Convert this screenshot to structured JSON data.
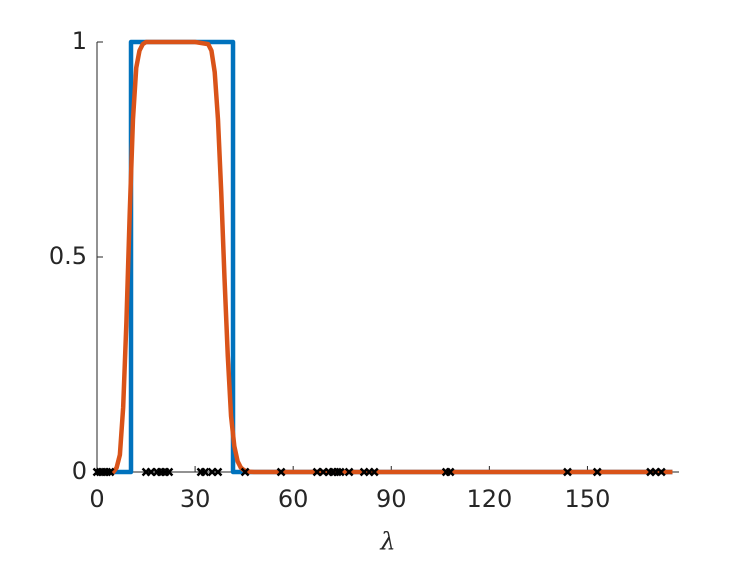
{
  "chart_data": {
    "type": "line",
    "x_label": "λ",
    "xlim": [
      0,
      178
    ],
    "ylim": [
      0,
      1
    ],
    "xticks": [
      0,
      30,
      60,
      90,
      120,
      150
    ],
    "yticks": [
      0,
      0.5,
      1
    ],
    "series": [
      {
        "color": "#0072bd",
        "style": "line",
        "x": [
          0,
          10.4,
          10.4,
          41.6,
          41.6,
          176
        ],
        "values": [
          0,
          0,
          1,
          1,
          0,
          0
        ]
      },
      {
        "color": "#d95319",
        "style": "line",
        "x": [
          0,
          5,
          6,
          7,
          8,
          9,
          10,
          11,
          12,
          13,
          14,
          15,
          20,
          25,
          30,
          34,
          35,
          36,
          37,
          38,
          39,
          40,
          41,
          42,
          43,
          44,
          45,
          46,
          48,
          50,
          60,
          176
        ],
        "values": [
          0,
          0,
          0.01,
          0.04,
          0.15,
          0.35,
          0.6,
          0.82,
          0.94,
          0.98,
          0.995,
          1,
          1,
          1,
          1,
          0.995,
          0.98,
          0.93,
          0.82,
          0.65,
          0.45,
          0.27,
          0.13,
          0.06,
          0.025,
          0.01,
          0.004,
          0.001,
          0,
          0,
          0,
          0
        ]
      },
      {
        "color": "#000000",
        "style": "marker",
        "x": [
          0,
          1,
          2,
          3,
          4,
          15,
          16.5,
          18.4,
          19.6,
          20.8,
          22,
          31.8,
          33,
          35.2,
          37,
          45.3,
          56.3,
          67.3,
          69.2,
          71,
          72.2,
          73.5,
          74.4,
          77.1,
          81.7,
          83.3,
          84.8,
          106.8,
          108,
          143.9,
          153,
          169.3,
          170.8,
          172.6
        ],
        "values": [
          0,
          0,
          0,
          0,
          0,
          0,
          0,
          0,
          0,
          0,
          0,
          0,
          0,
          0,
          0,
          0,
          0,
          0,
          0,
          0,
          0,
          0,
          0,
          0,
          0,
          0,
          0,
          0,
          0,
          0,
          0,
          0,
          0,
          0
        ]
      }
    ]
  }
}
